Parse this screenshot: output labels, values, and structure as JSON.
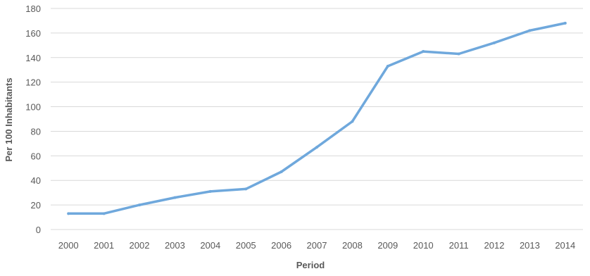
{
  "chart_data": {
    "type": "line",
    "title": "",
    "xlabel": "Period",
    "ylabel": "Per 100 Inhabitants",
    "categories": [
      "2000",
      "2001",
      "2002",
      "2003",
      "2004",
      "2005",
      "2006",
      "2007",
      "2008",
      "2009",
      "2010",
      "2011",
      "2012",
      "2013",
      "2014"
    ],
    "series": [
      {
        "values": [
          13,
          13,
          20,
          26,
          31,
          33,
          47,
          67,
          88,
          133,
          145,
          143,
          152,
          162,
          168
        ],
        "color": "#6fa8dc"
      }
    ],
    "ylim": [
      0,
      180
    ],
    "yticks": [
      0,
      20,
      40,
      60,
      80,
      100,
      120,
      140,
      160,
      180
    ],
    "grid": true,
    "legend": "none"
  }
}
